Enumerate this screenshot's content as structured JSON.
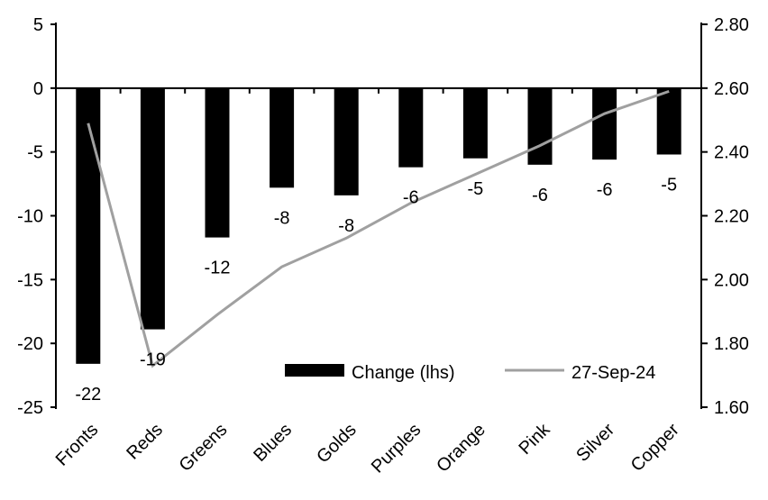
{
  "chart_data": {
    "type": "bar+line",
    "categories": [
      "Fronts",
      "Reds",
      "Greens",
      "Blues",
      "Golds",
      "Purples",
      "Orange",
      "Pink",
      "Silver",
      "Copper"
    ],
    "series": [
      {
        "name": "Change (lhs)",
        "type": "bar",
        "axis": "left",
        "values": [
          -21.6,
          -18.9,
          -11.7,
          -7.8,
          -8.4,
          -6.2,
          -5.5,
          -6.0,
          -5.6,
          -5.2
        ],
        "labels": [
          "-22",
          "-19",
          "-12",
          "-8",
          "-8",
          "-6",
          "-5",
          "-6",
          "-6",
          "-5"
        ]
      },
      {
        "name": "27-Sep-24",
        "type": "line",
        "axis": "right",
        "values": [
          2.49,
          1.73,
          1.89,
          2.04,
          2.13,
          2.24,
          2.33,
          2.42,
          2.52,
          2.59
        ]
      }
    ],
    "left_axis": {
      "ylim": [
        -25,
        5
      ],
      "ticks": [
        "5",
        "0",
        "-5",
        "-10",
        "-15",
        "-20",
        "-25"
      ]
    },
    "right_axis": {
      "ylim": [
        1.6,
        2.8
      ],
      "ticks": [
        "2.80",
        "2.60",
        "2.40",
        "2.20",
        "2.00",
        "1.80",
        "1.60"
      ]
    },
    "legend": "bottom-right",
    "grid": false,
    "colors": {
      "bar": "#000000",
      "line": "#a0a0a0"
    }
  }
}
